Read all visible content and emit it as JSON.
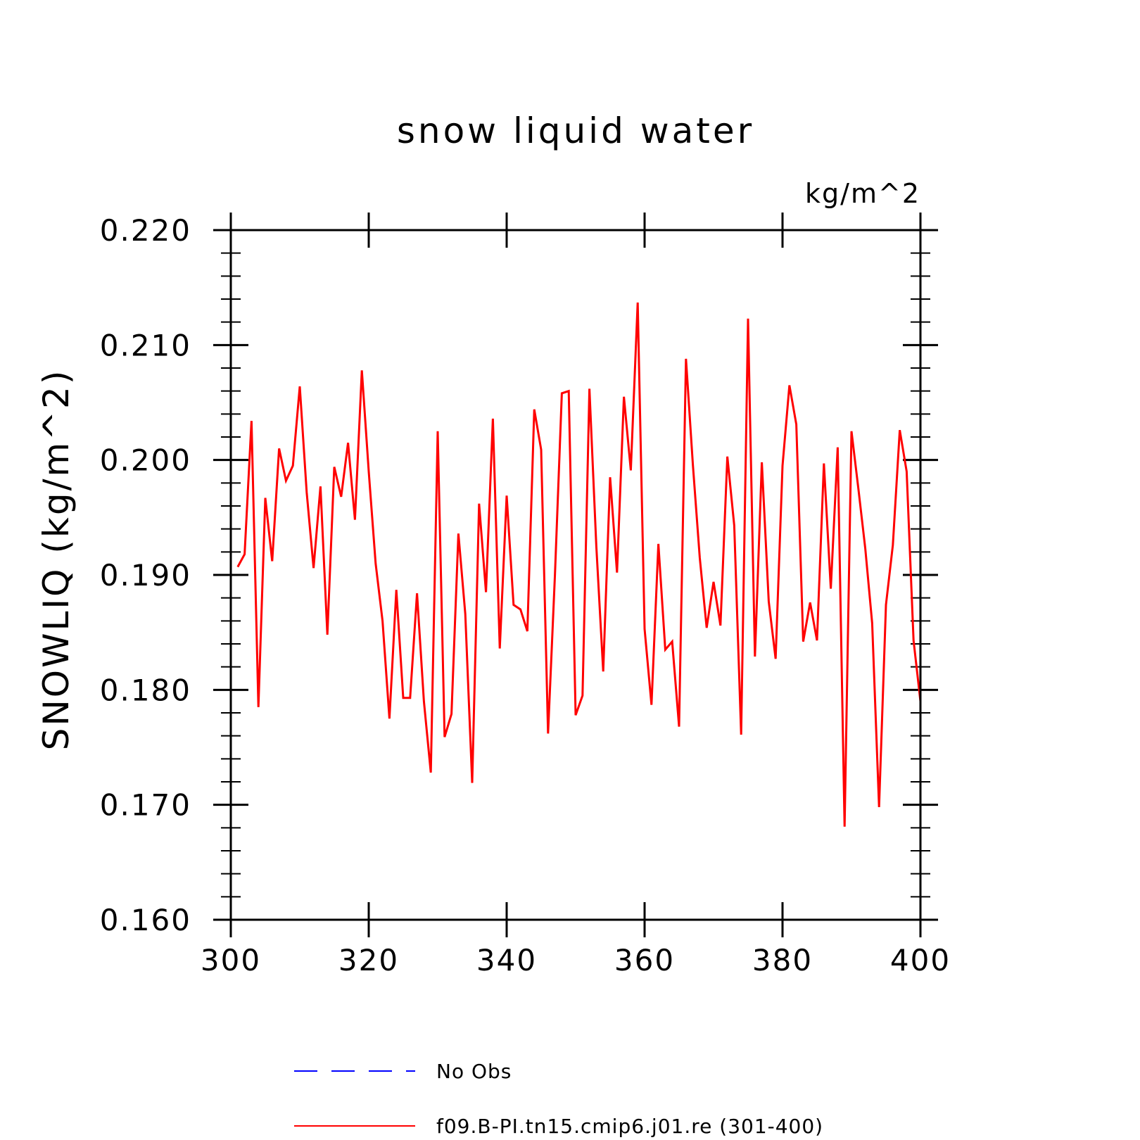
{
  "chart_data": {
    "type": "line",
    "title": "snow liquid water",
    "units_label": "kg/m^2",
    "ylabel": "SNOWLIQ   (kg/m^2)",
    "xlabel": "",
    "xlim": [
      300,
      400
    ],
    "ylim": [
      0.16,
      0.22
    ],
    "x_ticks": [
      300,
      320,
      340,
      360,
      380,
      400
    ],
    "x_tick_labels": [
      "300",
      "320",
      "340",
      "360",
      "380",
      "400"
    ],
    "y_ticks": [
      0.16,
      0.17,
      0.18,
      0.19,
      0.2,
      0.21,
      0.22
    ],
    "y_tick_labels": [
      "0.160",
      "0.170",
      "0.180",
      "0.190",
      "0.200",
      "0.210",
      "0.220"
    ],
    "grid": false,
    "legend_position": "bottom",
    "series": [
      {
        "name": "No Obs",
        "color": "#0000ff",
        "dash": true,
        "x": [],
        "values": []
      },
      {
        "name": "f09.B-PI.tn15.cmip6.j01.re (301-400)",
        "color": "#ff0000",
        "dash": false,
        "x": [
          301,
          302,
          303,
          304,
          305,
          306,
          307,
          308,
          309,
          310,
          311,
          312,
          313,
          314,
          315,
          316,
          317,
          318,
          319,
          320,
          321,
          322,
          323,
          324,
          325,
          326,
          327,
          328,
          329,
          330,
          331,
          332,
          333,
          334,
          335,
          336,
          337,
          338,
          339,
          340,
          341,
          342,
          343,
          344,
          345,
          346,
          347,
          348,
          349,
          350,
          351,
          352,
          353,
          354,
          355,
          356,
          357,
          358,
          359,
          360,
          361,
          362,
          363,
          364,
          365,
          366,
          367,
          368,
          369,
          370,
          371,
          372,
          373,
          374,
          375,
          376,
          377,
          378,
          379,
          380,
          381,
          382,
          383,
          384,
          385,
          386,
          387,
          388,
          389,
          390,
          391,
          392,
          393,
          394,
          395,
          396,
          397,
          398,
          399,
          400
        ],
        "values": [
          0.1907,
          0.1918,
          0.2034,
          0.1785,
          0.1967,
          0.1912,
          0.201,
          0.1982,
          0.1995,
          0.2064,
          0.1972,
          0.1906,
          0.1977,
          0.1848,
          0.1994,
          0.1968,
          0.2015,
          0.1948,
          0.2078,
          0.199,
          0.191,
          0.186,
          0.1775,
          0.1887,
          0.1793,
          0.1793,
          0.1884,
          0.179,
          0.1728,
          0.2025,
          0.1759,
          0.1779,
          0.1936,
          0.1866,
          0.1719,
          0.1962,
          0.1885,
          0.2036,
          0.1836,
          0.1969,
          0.1874,
          0.187,
          0.1851,
          0.2044,
          0.2009,
          0.1762,
          0.19,
          0.2058,
          0.206,
          0.1778,
          0.1795,
          0.2062,
          0.1925,
          0.1816,
          0.1985,
          0.1902,
          0.2055,
          0.1991,
          0.2137,
          0.1853,
          0.1787,
          0.1927,
          0.1835,
          0.1842,
          0.1768,
          0.2088,
          0.1996,
          0.1915,
          0.1854,
          0.1894,
          0.1856,
          0.2003,
          0.1943,
          0.1761,
          0.2123,
          0.1829,
          0.1998,
          0.1877,
          0.1827,
          0.1995,
          0.2065,
          0.2031,
          0.1842,
          0.1876,
          0.1843,
          0.1997,
          0.1888,
          0.2011,
          0.1681,
          0.2025,
          0.1975,
          0.1923,
          0.1858,
          0.1698,
          0.1874,
          0.1926,
          0.2026,
          0.199,
          0.1843,
          0.179
        ]
      }
    ]
  }
}
